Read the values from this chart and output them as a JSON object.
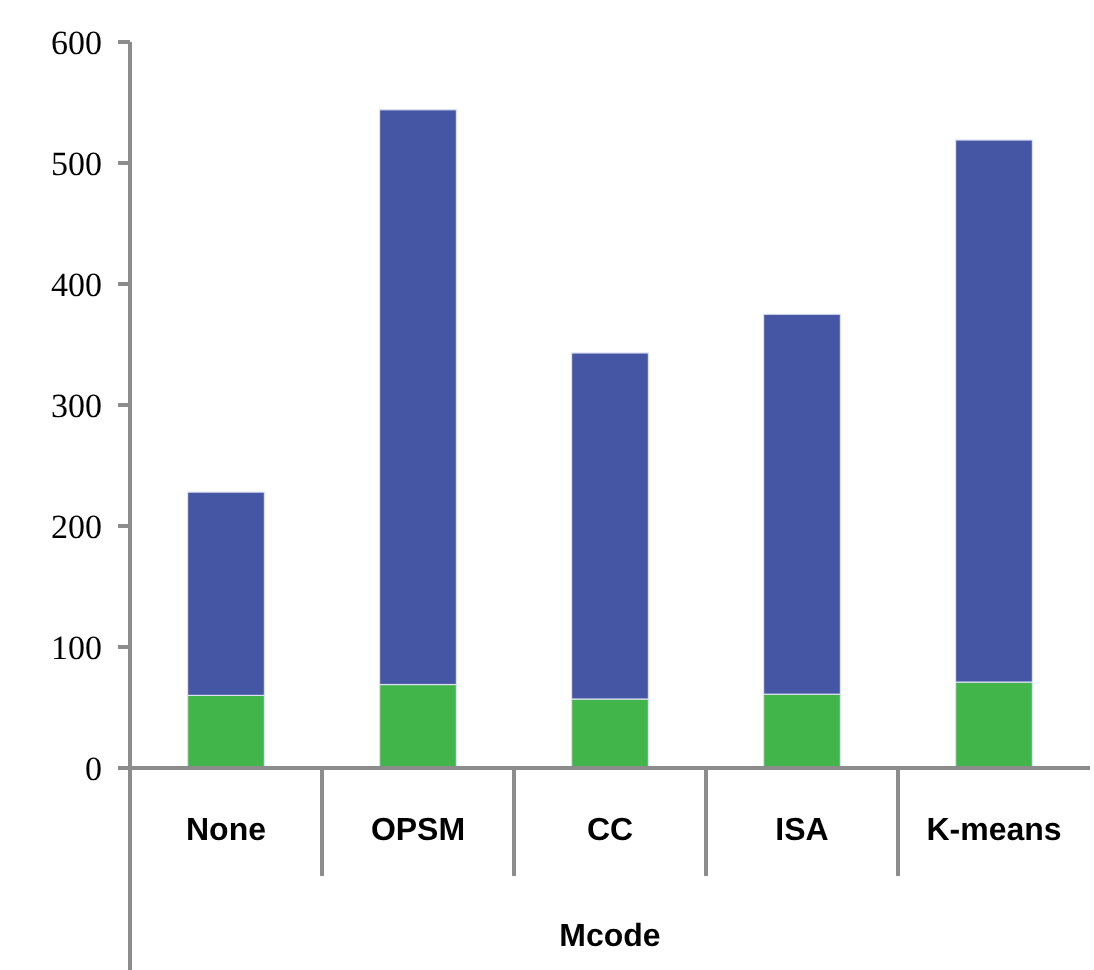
{
  "chart_data": {
    "type": "bar",
    "xlabel": "Mcode",
    "categories": [
      "None",
      "OPSM",
      "CC",
      "ISA",
      "K-means"
    ],
    "stacked": true,
    "series": [
      {
        "color": "#41b549",
        "values": [
          60,
          69,
          57,
          61,
          71
        ]
      },
      {
        "color": "#4556a5",
        "values": [
          168,
          475,
          286,
          314,
          448
        ]
      }
    ],
    "ylim": [
      0,
      600
    ],
    "yticks": [
      0,
      100,
      200,
      300,
      400,
      500,
      600
    ],
    "grid": false
  }
}
